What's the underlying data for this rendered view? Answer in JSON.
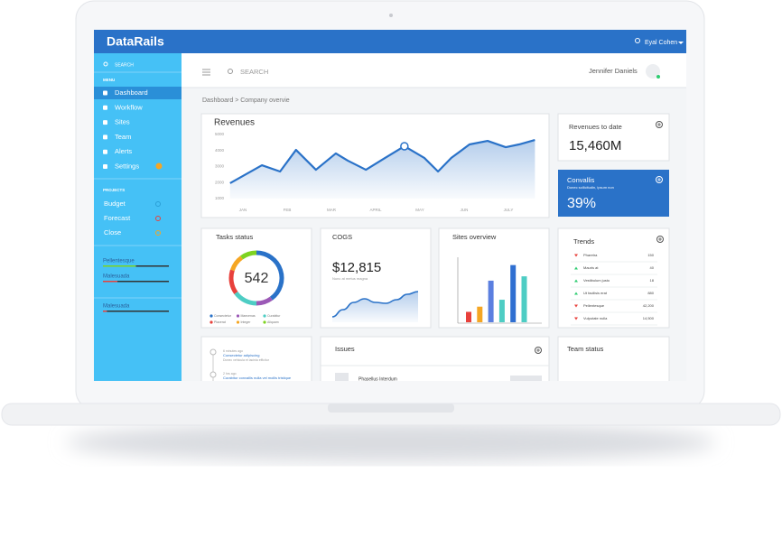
{
  "app": {
    "brand": "DataRails",
    "user": "Eyal Cohen"
  },
  "sidebar": {
    "search": "SEARCH",
    "menu_label": "MENU",
    "menu": [
      "Dashboard",
      "Workflow",
      "Sites",
      "Team",
      "Alerts",
      "Settings"
    ],
    "projects_label": "PROJECTS",
    "projects": [
      {
        "name": "Budget",
        "color": "#2a9fd6"
      },
      {
        "name": "Forecast",
        "color": "#e8413c"
      },
      {
        "name": "Close",
        "color": "#f5a623"
      }
    ],
    "progress": [
      {
        "label": "Pellentesque",
        "value": 50,
        "color": "#7ed321"
      },
      {
        "label": "Malesuada",
        "value": 22,
        "color": "#e8413c"
      },
      {
        "label": "Malesuada",
        "value": 6,
        "color": "#e8413c"
      }
    ]
  },
  "topbar": {
    "search": "SEARCH",
    "user": "Jennifer Daniels"
  },
  "breadcrumb": "Dashboard > Company overvie",
  "revenues": {
    "type": "line",
    "title": "Revenues",
    "categories": [
      "JAN",
      "FEB",
      "MAR",
      "APRIL",
      "MAY",
      "JUN",
      "JULY"
    ],
    "x": [
      -0.29,
      0.43,
      0.84,
      1.2,
      1.65,
      2.1,
      2.37,
      2.78,
      3.18,
      3.65,
      4.1,
      4.41,
      4.71,
      5.12,
      5.53,
      5.94,
      6.24,
      6.6
    ],
    "values": [
      1960,
      3080,
      2690,
      4040,
      2800,
      3820,
      3370,
      2800,
      3480,
      4270,
      3540,
      2690,
      3540,
      4380,
      4600,
      4210,
      4380,
      4660
    ],
    "ylim": [
      1000,
      5000
    ],
    "yticks": [
      5000,
      4000,
      3000,
      2000,
      1000
    ],
    "color": "#2a72c8",
    "marker_index": 9
  },
  "revenue_to_date": {
    "title": "Revenues to date",
    "value": "15,460M"
  },
  "convallis": {
    "title": "Convallis",
    "subtitle": "Donec sollicitudin, ipsum non",
    "value": "39%"
  },
  "tasks": {
    "type": "pie",
    "title": "Tasks status",
    "total": "542",
    "series": [
      {
        "name": "Consectetur",
        "color": "#2a72c8",
        "value": 40
      },
      {
        "name": "Maecenas",
        "color": "#9b59b6",
        "value": 10
      },
      {
        "name": "Curabitur",
        "color": "#4ecdc4",
        "value": 15
      },
      {
        "name": "Placerat",
        "color": "#e8413c",
        "value": 15
      },
      {
        "name": "Integer",
        "color": "#f5a623",
        "value": 10
      },
      {
        "name": "Aliquam",
        "color": "#7ed321",
        "value": 10
      }
    ]
  },
  "cogs": {
    "type": "area",
    "title": "COGS",
    "value": "$12,815",
    "subtitle": "Nunc at metus magna",
    "values": [
      6,
      14,
      22,
      26,
      22,
      21,
      25,
      31,
      34
    ],
    "ylim": [
      0,
      40
    ],
    "color": "#2a72c8"
  },
  "sites": {
    "type": "bar",
    "title": "Sites overview",
    "values": [
      12,
      18,
      48,
      26,
      66,
      53
    ],
    "colors": [
      "#e8413c",
      "#f5a623",
      "#5b7fe0",
      "#4ecdc4",
      "#2f6fd1",
      "#4ecdc4"
    ],
    "ylim": [
      0,
      75
    ]
  },
  "trends": {
    "title": "Trends",
    "rows": [
      {
        "name": "Pharetra",
        "value": "150",
        "direction": "down"
      },
      {
        "name": "Mauris at",
        "value": "40",
        "direction": "up"
      },
      {
        "name": "Vestibulum justo",
        "value": "18",
        "direction": "up"
      },
      {
        "name": "Ut facilisis erat",
        "value": "880",
        "direction": "up"
      },
      {
        "name": "Pellentesque",
        "value": "42,200",
        "direction": "down"
      },
      {
        "name": "Vulputate nulla",
        "value": "14,500",
        "direction": "down"
      }
    ]
  },
  "timeline": [
    {
      "time": "6 minutes ago",
      "title": "Consectetur adipiscing",
      "text": "Donec vehicula et lacinia efficitur"
    },
    {
      "time": "2 hrs ago",
      "title": "Curabitur convallis nulla vel mollis tristique",
      "text": ""
    }
  ],
  "issues": {
    "title": "Issues",
    "items": [
      "Phasellus Interdum"
    ]
  },
  "team_status": {
    "title": "Team status"
  }
}
